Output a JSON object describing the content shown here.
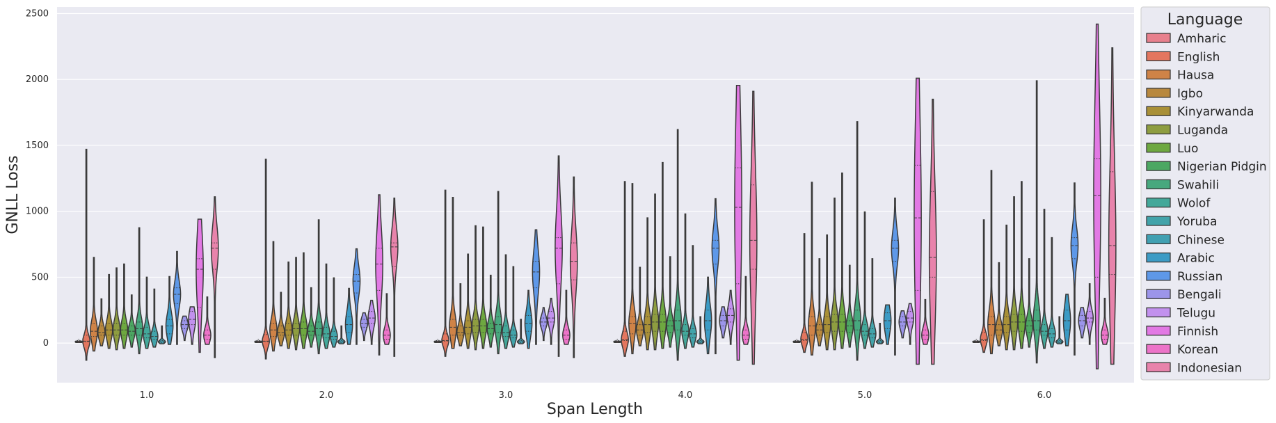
{
  "chart_data": {
    "type": "violin",
    "xlabel": "Span Length",
    "ylabel": "GNLL Loss",
    "ylim": [
      -300,
      2550
    ],
    "yticks": [
      0,
      500,
      1000,
      1500,
      2000,
      2500
    ],
    "grid": true,
    "legend_title": "Language",
    "legend_position": "right",
    "categories": [
      "1.0",
      "2.0",
      "3.0",
      "4.0",
      "5.0",
      "6.0"
    ],
    "series": [
      {
        "name": "Amharic",
        "color": "#e8808d",
        "stats": [
          [
            5,
            15,
            20,
            30,
            10
          ],
          [
            5,
            15,
            20,
            30,
            10
          ],
          [
            5,
            15,
            20,
            30,
            10
          ],
          [
            5,
            15,
            20,
            30,
            10
          ],
          [
            5,
            15,
            20,
            30,
            10
          ],
          [
            5,
            15,
            20,
            30,
            10
          ]
        ]
      },
      {
        "name": "English",
        "color": "#e3765f",
        "stats": [
          [
            -130,
            1470,
            10,
            60,
            15
          ],
          [
            -120,
            1395,
            12,
            65,
            15
          ],
          [
            -100,
            1160,
            15,
            70,
            20
          ],
          [
            -100,
            1225,
            20,
            90,
            25
          ],
          [
            -70,
            830,
            20,
            80,
            30
          ],
          [
            -70,
            935,
            20,
            80,
            30
          ]
        ]
      },
      {
        "name": "Hausa",
        "color": "#cf8347",
        "stats": [
          [
            -60,
            650,
            50,
            150,
            90
          ],
          [
            -60,
            770,
            50,
            150,
            100
          ],
          [
            -40,
            1105,
            60,
            180,
            120
          ],
          [
            -80,
            1210,
            70,
            200,
            150
          ],
          [
            -90,
            1220,
            60,
            200,
            130
          ],
          [
            -80,
            1310,
            60,
            200,
            140
          ]
        ]
      },
      {
        "name": "Igbo",
        "color": "#b8883e",
        "stats": [
          [
            -20,
            335,
            60,
            130,
            80
          ],
          [
            -20,
            385,
            60,
            130,
            80
          ],
          [
            -20,
            450,
            60,
            130,
            80
          ],
          [
            -20,
            575,
            60,
            140,
            100
          ],
          [
            -20,
            640,
            60,
            140,
            100
          ],
          [
            -20,
            610,
            60,
            140,
            100
          ]
        ]
      },
      {
        "name": "Kinyarwanda",
        "color": "#a99037",
        "stats": [
          [
            -40,
            520,
            60,
            150,
            100
          ],
          [
            -40,
            615,
            60,
            150,
            100
          ],
          [
            -40,
            675,
            70,
            170,
            120
          ],
          [
            -50,
            950,
            80,
            200,
            140
          ],
          [
            -50,
            820,
            80,
            200,
            140
          ],
          [
            -50,
            895,
            80,
            200,
            140
          ]
        ]
      },
      {
        "name": "Luganda",
        "color": "#8e9d40",
        "stats": [
          [
            -50,
            570,
            60,
            150,
            100
          ],
          [
            -50,
            650,
            60,
            150,
            110
          ],
          [
            -50,
            890,
            80,
            180,
            130
          ],
          [
            -50,
            1130,
            90,
            220,
            160
          ],
          [
            -50,
            1100,
            90,
            220,
            160
          ],
          [
            -50,
            1110,
            90,
            220,
            160
          ]
        ]
      },
      {
        "name": "Luo",
        "color": "#6ea840",
        "stats": [
          [
            -40,
            600,
            60,
            150,
            100
          ],
          [
            -40,
            685,
            60,
            160,
            110
          ],
          [
            -40,
            880,
            80,
            180,
            130
          ],
          [
            -40,
            1370,
            90,
            220,
            160
          ],
          [
            -40,
            1290,
            90,
            220,
            160
          ],
          [
            -40,
            1225,
            90,
            220,
            160
          ]
        ]
      },
      {
        "name": "Nigerian Pidgin",
        "color": "#4ca762",
        "stats": [
          [
            -30,
            365,
            60,
            130,
            90
          ],
          [
            -30,
            420,
            60,
            130,
            90
          ],
          [
            -30,
            515,
            70,
            150,
            110
          ],
          [
            -30,
            655,
            80,
            170,
            130
          ],
          [
            -30,
            590,
            80,
            170,
            130
          ],
          [
            -30,
            640,
            80,
            170,
            130
          ]
        ]
      },
      {
        "name": "Swahili",
        "color": "#47a87e",
        "stats": [
          [
            -80,
            875,
            60,
            160,
            110
          ],
          [
            -80,
            935,
            60,
            160,
            110
          ],
          [
            -80,
            1150,
            80,
            200,
            140
          ],
          [
            -130,
            1620,
            100,
            250,
            170
          ],
          [
            -130,
            1680,
            100,
            250,
            170
          ],
          [
            -150,
            1990,
            100,
            250,
            170
          ]
        ]
      },
      {
        "name": "Wolof",
        "color": "#43a89a",
        "stats": [
          [
            -40,
            500,
            40,
            120,
            70
          ],
          [
            -40,
            600,
            40,
            120,
            70
          ],
          [
            -40,
            670,
            50,
            130,
            80
          ],
          [
            -40,
            980,
            60,
            140,
            90
          ],
          [
            -40,
            995,
            60,
            140,
            90
          ],
          [
            -40,
            1015,
            60,
            140,
            90
          ]
        ]
      },
      {
        "name": "Yoruba",
        "color": "#42a3aa",
        "stats": [
          [
            -30,
            410,
            30,
            90,
            50
          ],
          [
            -30,
            495,
            30,
            90,
            50
          ],
          [
            -30,
            580,
            40,
            100,
            60
          ],
          [
            -30,
            740,
            40,
            110,
            70
          ],
          [
            -30,
            640,
            40,
            110,
            70
          ],
          [
            -30,
            800,
            40,
            110,
            70
          ]
        ]
      },
      {
        "name": "Chinese",
        "color": "#41a0b2",
        "stats": [
          [
            -5,
            130,
            5,
            20,
            10
          ],
          [
            -5,
            130,
            5,
            20,
            10
          ],
          [
            -5,
            180,
            5,
            20,
            10
          ],
          [
            -5,
            200,
            5,
            20,
            10
          ],
          [
            -5,
            150,
            5,
            20,
            10
          ],
          [
            -5,
            200,
            5,
            20,
            10
          ]
        ]
      },
      {
        "name": "Arabic",
        "color": "#3c9bc5",
        "stats": [
          [
            -10,
            505,
            70,
            180,
            130
          ],
          [
            -10,
            415,
            80,
            200,
            140
          ],
          [
            -40,
            400,
            90,
            210,
            150
          ],
          [
            -80,
            500,
            100,
            250,
            170
          ],
          [
            -10,
            290,
            110,
            230,
            170
          ],
          [
            -20,
            370,
            100,
            250,
            170
          ]
        ]
      },
      {
        "name": "Russian",
        "color": "#5e98e8",
        "stats": [
          [
            -10,
            695,
            300,
            420,
            370
          ],
          [
            -10,
            715,
            380,
            520,
            470
          ],
          [
            -10,
            860,
            420,
            620,
            540
          ],
          [
            -80,
            1095,
            600,
            780,
            720
          ],
          [
            -90,
            1100,
            620,
            780,
            720
          ],
          [
            -90,
            1215,
            640,
            800,
            740
          ]
        ]
      },
      {
        "name": "Bengali",
        "color": "#9c95ea",
        "stats": [
          [
            20,
            205,
            110,
            170,
            140
          ],
          [
            20,
            230,
            120,
            180,
            150
          ],
          [
            20,
            270,
            130,
            190,
            160
          ],
          [
            40,
            275,
            130,
            210,
            170
          ],
          [
            40,
            245,
            130,
            200,
            160
          ],
          [
            40,
            270,
            130,
            210,
            170
          ]
        ]
      },
      {
        "name": "Telugu",
        "color": "#c291ee",
        "stats": [
          [
            -10,
            275,
            140,
            240,
            180
          ],
          [
            -10,
            325,
            150,
            240,
            190
          ],
          [
            -10,
            340,
            160,
            240,
            190
          ],
          [
            -10,
            400,
            160,
            260,
            210
          ],
          [
            -10,
            300,
            160,
            240,
            190
          ],
          [
            -10,
            450,
            160,
            240,
            190
          ]
        ]
      },
      {
        "name": "Finnish",
        "color": "#e279e4",
        "stats": [
          [
            -70,
            940,
            270,
            640,
            560
          ],
          [
            -90,
            1125,
            400,
            720,
            600
          ],
          [
            -100,
            1420,
            450,
            800,
            720
          ],
          [
            -130,
            1955,
            450,
            1330,
            1030
          ],
          [
            -160,
            2010,
            400,
            1350,
            950
          ],
          [
            -195,
            2420,
            500,
            1400,
            1120
          ]
        ]
      },
      {
        "name": "Korean",
        "color": "#ec73c8",
        "stats": [
          [
            -10,
            350,
            30,
            100,
            60
          ],
          [
            -10,
            375,
            30,
            100,
            60
          ],
          [
            -10,
            400,
            30,
            100,
            60
          ],
          [
            -10,
            505,
            30,
            100,
            60
          ],
          [
            -10,
            330,
            30,
            100,
            60
          ],
          [
            -10,
            340,
            30,
            100,
            60
          ]
        ]
      },
      {
        "name": "Indonesian",
        "color": "#e883ab",
        "stats": [
          [
            -110,
            1110,
            560,
            760,
            720
          ],
          [
            -100,
            1100,
            580,
            760,
            730
          ],
          [
            -110,
            1260,
            480,
            760,
            620
          ],
          [
            -160,
            1910,
            560,
            1200,
            780
          ],
          [
            -160,
            1850,
            500,
            1150,
            650
          ],
          [
            -160,
            2240,
            520,
            1300,
            740
          ]
        ]
      }
    ]
  }
}
